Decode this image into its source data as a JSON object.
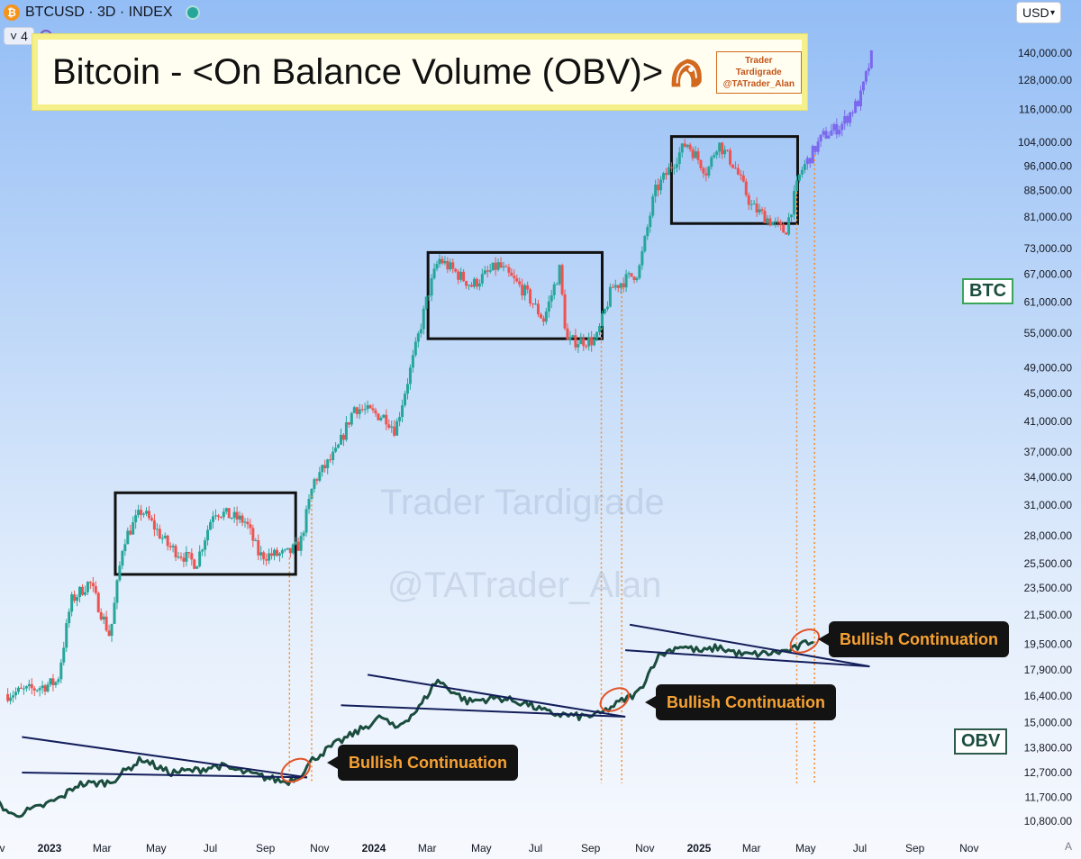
{
  "header": {
    "symbol": "BTCUSD · 3D · INDEX",
    "indicator_count": "4",
    "currency": "USD"
  },
  "title": "Bitcoin - <On Balance Volume (OBV)>",
  "brand": {
    "line1": "Trader Tardigrade",
    "line2": "@TATrader_Alan"
  },
  "watermark": {
    "line1": "Trader Tardigrade",
    "line2": "@TATrader_Alan"
  },
  "labels": {
    "btc": "BTC",
    "obv": "OBV"
  },
  "callouts": [
    "Bullish Continuation",
    "Bullish Continuation",
    "Bullish Continuation"
  ],
  "colors": {
    "up": "#26a69a",
    "down": "#ef5350",
    "projection": "#7b68ee",
    "obv_line": "#1b4d3e",
    "trendline": "#141e5a",
    "guide": "#f28a2c",
    "title_border": "#f6f08a"
  },
  "chart_data": {
    "type": "candlestick",
    "scale": "log",
    "timeframe": "3D",
    "x_ticks": [
      "Nov",
      "2023",
      "Mar",
      "May",
      "Jul",
      "Sep",
      "Nov",
      "2024",
      "Mar",
      "May",
      "Jul",
      "Sep",
      "Nov",
      "2025",
      "Mar",
      "May",
      "Jul",
      "Sep",
      "Nov"
    ],
    "y_ticks": [
      10800,
      11700,
      12700,
      13800,
      15000,
      16400,
      17900,
      19500,
      21500,
      23500,
      25500,
      28000,
      31000,
      34000,
      37000,
      41000,
      45000,
      49000,
      55000,
      61000,
      67000,
      73000,
      81000,
      88500,
      96000,
      104000,
      116000,
      128000,
      140000
    ],
    "y_tick_labels": [
      "10,800.00",
      "11,700.00",
      "12,700.00",
      "13,800.00",
      "15,000.00",
      "16,400.00",
      "17,900.00",
      "19,500.00",
      "21,500.00",
      "23,500.00",
      "25,500.00",
      "28,000.00",
      "31,000.00",
      "34,000.00",
      "37,000.00",
      "41,000.00",
      "45,000.00",
      "49,000.00",
      "55,000.00",
      "61,000.00",
      "67,000.00",
      "73,000.00",
      "81,000.00",
      "88,500.00",
      "96,000.00",
      "104,000.00",
      "116,000.00",
      "128,000.00",
      "140,000.00"
    ],
    "btc_path": [
      [
        "2022-11-15",
        16500
      ],
      [
        "2022-12-15",
        16800
      ],
      [
        "2023-01-10",
        17200
      ],
      [
        "2023-01-25",
        22500
      ],
      [
        "2023-02-15",
        24000
      ],
      [
        "2023-03-10",
        20000
      ],
      [
        "2023-03-25",
        27500
      ],
      [
        "2023-04-15",
        30500
      ],
      [
        "2023-05-15",
        27000
      ],
      [
        "2023-06-15",
        25500
      ],
      [
        "2023-07-05",
        30500
      ],
      [
        "2023-08-10",
        29300
      ],
      [
        "2023-08-25",
        26200
      ],
      [
        "2023-09-25",
        26300
      ],
      [
        "2023-10-10",
        27200
      ],
      [
        "2023-10-25",
        33500
      ],
      [
        "2023-11-20",
        37000
      ],
      [
        "2023-12-10",
        43000
      ],
      [
        "2024-01-15",
        41500
      ],
      [
        "2024-01-25",
        39800
      ],
      [
        "2024-02-15",
        51000
      ],
      [
        "2024-03-01",
        62000
      ],
      [
        "2024-03-14",
        70500
      ],
      [
        "2024-04-20",
        64500
      ],
      [
        "2024-05-20",
        69000
      ],
      [
        "2024-06-20",
        63000
      ],
      [
        "2024-07-10",
        57500
      ],
      [
        "2024-07-28",
        68000
      ],
      [
        "2024-08-05",
        53500
      ],
      [
        "2024-09-07",
        53700
      ],
      [
        "2024-09-25",
        64000
      ],
      [
        "2024-10-25",
        67500
      ],
      [
        "2024-11-12",
        88000
      ],
      [
        "2024-12-05",
        98000
      ],
      [
        "2024-12-18",
        104000
      ],
      [
        "2025-01-10",
        94000
      ],
      [
        "2025-01-22",
        104000
      ],
      [
        "2025-02-10",
        96000
      ],
      [
        "2025-03-01",
        84000
      ],
      [
        "2025-04-08",
        77000
      ],
      [
        "2025-04-25",
        94000
      ],
      [
        "2025-05-20",
        106000
      ],
      [
        "2025-06-10",
        110000
      ],
      [
        "2025-07-01",
        120000
      ],
      [
        "2025-07-15",
        140000
      ]
    ],
    "obv_path": [
      [
        "2022-11-01",
        11600
      ],
      [
        "2022-11-20",
        11000
      ],
      [
        "2022-12-20",
        11300
      ],
      [
        "2023-01-15",
        11700
      ],
      [
        "2023-02-01",
        12200
      ],
      [
        "2023-03-10",
        12300
      ],
      [
        "2023-04-15",
        13300
      ],
      [
        "2023-05-15",
        12700
      ],
      [
        "2023-06-15",
        12800
      ],
      [
        "2023-07-10",
        13000
      ],
      [
        "2023-08-20",
        12600
      ],
      [
        "2023-09-25",
        12300
      ],
      [
        "2023-10-10",
        12600
      ],
      [
        "2023-10-25",
        13300
      ],
      [
        "2023-11-20",
        14000
      ],
      [
        "2023-12-15",
        14600
      ],
      [
        "2024-01-10",
        15300
      ],
      [
        "2024-01-25",
        14700
      ],
      [
        "2024-02-20",
        15700
      ],
      [
        "2024-03-12",
        17300
      ],
      [
        "2024-04-15",
        16100
      ],
      [
        "2024-05-20",
        16300
      ],
      [
        "2024-06-20",
        16000
      ],
      [
        "2024-07-15",
        15500
      ],
      [
        "2024-08-20",
        15300
      ],
      [
        "2024-09-10",
        15400
      ],
      [
        "2024-10-05",
        16100
      ],
      [
        "2024-10-25",
        16600
      ],
      [
        "2024-11-15",
        18700
      ],
      [
        "2024-12-10",
        19400
      ],
      [
        "2025-01-05",
        19000
      ],
      [
        "2025-01-22",
        19300
      ],
      [
        "2025-02-20",
        18800
      ],
      [
        "2025-03-20",
        18900
      ],
      [
        "2025-04-15",
        19100
      ],
      [
        "2025-05-10",
        19800
      ]
    ],
    "consolidation_boxes": [
      {
        "from": "2023-03-16",
        "to": "2023-10-05",
        "low": 24600,
        "high": 32300
      },
      {
        "from": "2024-03-02",
        "to": "2024-09-14",
        "low": 54000,
        "high": 72000
      },
      {
        "from": "2024-12-01",
        "to": "2025-04-22",
        "low": 79300,
        "high": 106000
      }
    ],
    "obv_trendlines": [
      {
        "from": [
          "2022-12-01",
          14300
        ],
        "to": [
          "2023-10-18",
          12500
        ]
      },
      {
        "from": [
          "2022-12-01",
          12700
        ],
        "to": [
          "2023-10-18",
          12500
        ]
      },
      {
        "from": [
          "2023-12-25",
          17600
        ],
        "to": [
          "2024-10-10",
          15300
        ]
      },
      {
        "from": [
          "2023-11-25",
          15900
        ],
        "to": [
          "2024-10-10",
          15300
        ]
      },
      {
        "from": [
          "2024-10-15",
          20800
        ],
        "to": [
          "2025-07-12",
          18100
        ]
      },
      {
        "from": [
          "2024-10-10",
          19100
        ],
        "to": [
          "2025-07-12",
          18100
        ]
      }
    ],
    "breakout_circles": [
      {
        "date": "2023-10-05",
        "obv": 12800
      },
      {
        "date": "2024-09-28",
        "obv": 16200
      },
      {
        "date": "2025-04-30",
        "obv": 19700
      }
    ],
    "guide_lines": [
      "2023-09-28",
      "2023-10-23",
      "2024-09-13",
      "2024-10-06",
      "2025-04-21",
      "2025-05-11"
    ]
  }
}
